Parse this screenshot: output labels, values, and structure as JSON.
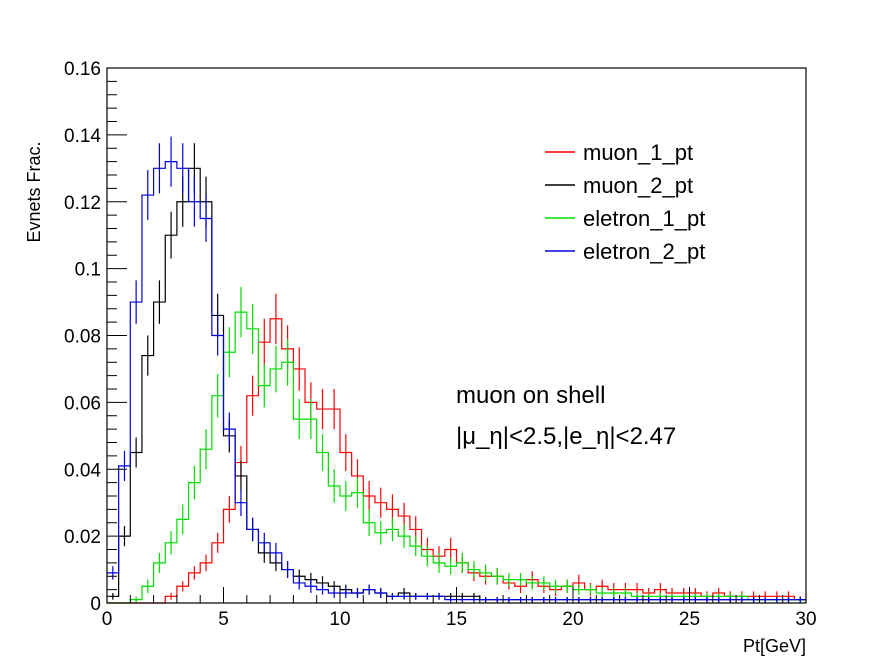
{
  "chart_data": {
    "type": "line",
    "subtype": "step-histogram",
    "xlabel": "Pt[GeV]",
    "ylabel": "Evnets Frac.",
    "xlim": [
      0,
      30
    ],
    "ylim": [
      0,
      0.16
    ],
    "xticks": [
      0,
      5,
      10,
      15,
      20,
      25,
      30
    ],
    "xtick_labels": [
      "0",
      "5",
      "10",
      "15",
      "20",
      "25",
      "30"
    ],
    "yticks": [
      0,
      0.02,
      0.04,
      0.06,
      0.08,
      0.1,
      0.12,
      0.14,
      0.16
    ],
    "ytick_labels": [
      "0",
      "0.02",
      "0.04",
      "0.06",
      "0.08",
      "0.1",
      "0.12",
      "0.14",
      "0.16"
    ],
    "grid": false,
    "legend_position": "top-right",
    "annotations": [
      "muon on shell",
      "|μ_η|<2.5,|e_η|<2.47"
    ],
    "bin_width": 0.5,
    "series": [
      {
        "name": "muon_1_pt",
        "color": "#ff0000",
        "values": [
          0,
          0,
          0,
          0,
          0,
          0.002,
          0.005,
          0.009,
          0.012,
          0.018,
          0.028,
          0.042,
          0.062,
          0.078,
          0.085,
          0.076,
          0.07,
          0.06,
          0.058,
          0.058,
          0.045,
          0.038,
          0.032,
          0.03,
          0.028,
          0.026,
          0.022,
          0.016,
          0.014,
          0.016,
          0.012,
          0.009,
          0.008,
          0.008,
          0.006,
          0.005,
          0.007,
          0.005,
          0.004,
          0.005,
          0.006,
          0.004,
          0.005,
          0.004,
          0.004,
          0.004,
          0.003,
          0.004,
          0.003,
          0.003,
          0.003,
          0.002,
          0.003,
          0.002,
          0.002,
          0.002,
          0.002,
          0.002,
          0.002,
          0.001
        ],
        "errors": [
          0,
          0,
          0,
          0,
          0,
          0.001,
          0.0015,
          0.002,
          0.0025,
          0.003,
          0.004,
          0.005,
          0.006,
          0.007,
          0.0075,
          0.007,
          0.0065,
          0.006,
          0.006,
          0.006,
          0.0055,
          0.005,
          0.0045,
          0.0045,
          0.0045,
          0.004,
          0.004,
          0.0035,
          0.003,
          0.0035,
          0.003,
          0.0025,
          0.0025,
          0.0025,
          0.002,
          0.002,
          0.0025,
          0.002,
          0.002,
          0.002,
          0.0025,
          0.002,
          0.002,
          0.002,
          0.002,
          0.002,
          0.0015,
          0.002,
          0.0015,
          0.0015,
          0.0015,
          0.0015,
          0.0015,
          0.0015,
          0.0015,
          0.0015,
          0.0015,
          0.0015,
          0.0015,
          0.001
        ]
      },
      {
        "name": "muon_2_pt",
        "color": "#000000",
        "values": [
          0.002,
          0.02,
          0.045,
          0.074,
          0.09,
          0.11,
          0.12,
          0.13,
          0.12,
          0.086,
          0.05,
          0.038,
          0.022,
          0.015,
          0.012,
          0.01,
          0.008,
          0.007,
          0.006,
          0.005,
          0.004,
          0.003,
          0.004,
          0.003,
          0.002,
          0.003,
          0.002,
          0.002,
          0.002,
          0.002,
          0.002,
          0.002,
          0.001,
          0.001,
          0.001,
          0.001,
          0.001,
          0.001,
          0.001,
          0.001,
          0.001,
          0.001,
          0.001,
          0.001,
          0.001,
          0.001,
          0.001,
          0.001,
          0.001,
          0.001,
          0.001,
          0.001,
          0.001,
          0.001,
          0.001,
          0.001,
          0.001,
          0.001,
          0.001,
          0.001
        ],
        "errors": [
          0.001,
          0.003,
          0.0045,
          0.006,
          0.0065,
          0.007,
          0.0075,
          0.0075,
          0.0075,
          0.0065,
          0.005,
          0.0045,
          0.0035,
          0.003,
          0.0025,
          0.0025,
          0.002,
          0.002,
          0.002,
          0.0015,
          0.0015,
          0.0015,
          0.0015,
          0.0015,
          0.001,
          0.0015,
          0.001,
          0.001,
          0.001,
          0.001,
          0.001,
          0.001,
          0.0008,
          0.0008,
          0.0008,
          0.0008,
          0.0008,
          0.0008,
          0.0008,
          0.0008,
          0.0008,
          0.0008,
          0.0008,
          0.0008,
          0.0008,
          0.0008,
          0.0008,
          0.0008,
          0.0008,
          0.0008,
          0.0008,
          0.0008,
          0.0008,
          0.0008,
          0.0008,
          0.0008,
          0.0008,
          0.0008,
          0.0008,
          0.0008
        ]
      },
      {
        "name": "eletron_1_pt",
        "color": "#00dd00",
        "values": [
          0,
          0,
          0.001,
          0.005,
          0.012,
          0.018,
          0.025,
          0.036,
          0.046,
          0.062,
          0.075,
          0.087,
          0.082,
          0.065,
          0.07,
          0.072,
          0.055,
          0.055,
          0.045,
          0.035,
          0.032,
          0.033,
          0.024,
          0.021,
          0.022,
          0.02,
          0.017,
          0.014,
          0.012,
          0.011,
          0.012,
          0.01,
          0.009,
          0.008,
          0.007,
          0.007,
          0.006,
          0.006,
          0.005,
          0.005,
          0.004,
          0.004,
          0.003,
          0.003,
          0.003,
          0.002,
          0.002,
          0.002,
          0.002,
          0.002,
          0.002,
          0.002,
          0.002,
          0.002,
          0.002,
          0.001,
          0.001,
          0.001,
          0.001,
          0.001
        ],
        "errors": [
          0,
          0,
          0.001,
          0.002,
          0.003,
          0.0035,
          0.0045,
          0.005,
          0.006,
          0.0065,
          0.0075,
          0.0075,
          0.0075,
          0.0065,
          0.007,
          0.007,
          0.006,
          0.006,
          0.0055,
          0.005,
          0.0045,
          0.0045,
          0.004,
          0.0035,
          0.0035,
          0.0035,
          0.003,
          0.003,
          0.003,
          0.0025,
          0.003,
          0.0025,
          0.0025,
          0.0025,
          0.002,
          0.002,
          0.002,
          0.002,
          0.002,
          0.002,
          0.0015,
          0.0015,
          0.0015,
          0.0015,
          0.0015,
          0.001,
          0.001,
          0.001,
          0.001,
          0.001,
          0.001,
          0.001,
          0.001,
          0.001,
          0.001,
          0.0008,
          0.0008,
          0.0008,
          0.0008,
          0.0008
        ]
      },
      {
        "name": "eletron_2_pt",
        "color": "#0000dd",
        "values": [
          0.009,
          0.041,
          0.09,
          0.122,
          0.13,
          0.132,
          0.13,
          0.12,
          0.115,
          0.08,
          0.052,
          0.03,
          0.022,
          0.018,
          0.015,
          0.01,
          0.006,
          0.005,
          0.004,
          0.003,
          0.003,
          0.003,
          0.004,
          0.003,
          0.002,
          0.002,
          0.002,
          0.002,
          0.002,
          0.001,
          0.001,
          0.001,
          0.001,
          0.001,
          0.001,
          0.001,
          0.001,
          0.001,
          0.001,
          0.001,
          0.001,
          0.001,
          0.001,
          0.001,
          0.001,
          0.001,
          0.001,
          0.001,
          0.001,
          0.001,
          0.001,
          0.001,
          0.001,
          0.001,
          0.001,
          0.001,
          0.001,
          0.001,
          0.001,
          0.001
        ],
        "errors": [
          0.002,
          0.0045,
          0.0065,
          0.0075,
          0.0075,
          0.0075,
          0.0075,
          0.0075,
          0.007,
          0.006,
          0.005,
          0.004,
          0.0035,
          0.003,
          0.003,
          0.0025,
          0.002,
          0.002,
          0.0015,
          0.0015,
          0.0015,
          0.0015,
          0.0015,
          0.0015,
          0.001,
          0.001,
          0.001,
          0.001,
          0.001,
          0.0008,
          0.0008,
          0.0008,
          0.0008,
          0.0008,
          0.0008,
          0.0008,
          0.0008,
          0.0008,
          0.0008,
          0.0008,
          0.0008,
          0.0008,
          0.0008,
          0.0008,
          0.0008,
          0.0008,
          0.0008,
          0.0008,
          0.0008,
          0.0008,
          0.0008,
          0.0008,
          0.0008,
          0.0008,
          0.0008,
          0.0008,
          0.0008,
          0.0008,
          0.0008,
          0.0008
        ]
      }
    ]
  }
}
